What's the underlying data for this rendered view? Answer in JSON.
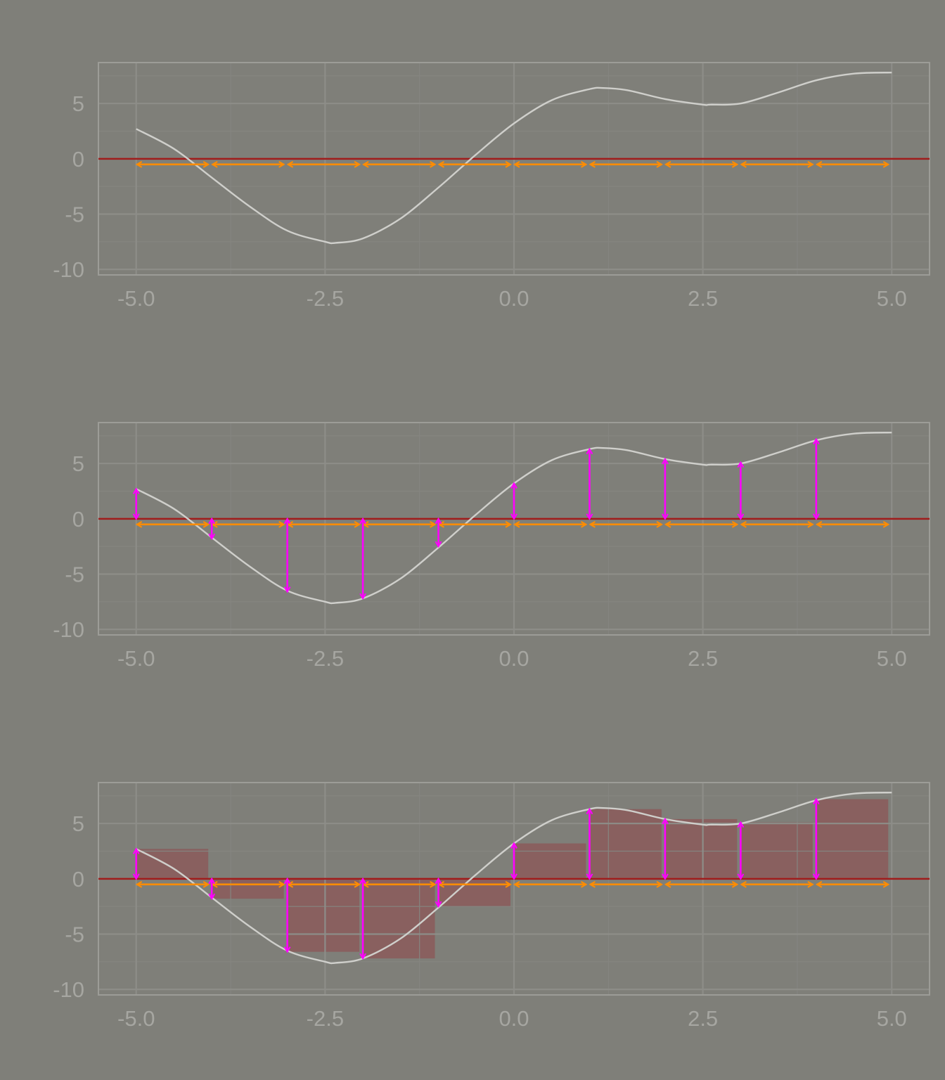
{
  "colors": {
    "background": "#7f7f79",
    "panel_border": "#9c9c97",
    "grid_major": "#8d8d88",
    "grid_minor": "#858580",
    "tick_label": "#a6a6a1",
    "curve": "#cfcfcb",
    "zero_line": "#a01c1c",
    "interval_arrows": "#ff8c00",
    "height_arrows": "#ff00ff",
    "riemann_bars": "#8b5a5a"
  },
  "chart_data": [
    {
      "type": "line",
      "x_ticks": [
        "-5.0",
        "-2.5",
        "0.0",
        "2.5",
        "5.0"
      ],
      "y_ticks": [
        "5",
        "0",
        "-5",
        "-10"
      ],
      "xlim": [
        -5.5,
        5.5
      ],
      "ylim": [
        -10.5,
        8.7
      ],
      "grid": true,
      "curve_x": [
        -5,
        -4.5,
        -4,
        -3.5,
        -3,
        -2.5,
        -2.36,
        -2,
        -1.5,
        -1,
        -0.5,
        0,
        0.5,
        1,
        1.18,
        1.5,
        2,
        2.5,
        2.6,
        3,
        3.5,
        4,
        4.5,
        5
      ],
      "curve_y": [
        2.7,
        0.9,
        -1.7,
        -4.3,
        -6.5,
        -7.5,
        -7.6,
        -7.2,
        -5.4,
        -2.6,
        0.4,
        3.2,
        5.3,
        6.3,
        6.4,
        6.2,
        5.4,
        4.9,
        4.9,
        5.0,
        6.0,
        7.1,
        7.7,
        7.8
      ],
      "interval_edges": [
        -5,
        -4,
        -3,
        -2,
        -1,
        0,
        1,
        2,
        3,
        4,
        5
      ],
      "sample_heights": [],
      "bars": []
    },
    {
      "type": "line",
      "x_ticks": [
        "-5.0",
        "-2.5",
        "0.0",
        "2.5",
        "5.0"
      ],
      "y_ticks": [
        "5",
        "0",
        "-5",
        "-10"
      ],
      "xlim": [
        -5.5,
        5.5
      ],
      "ylim": [
        -10.5,
        8.7
      ],
      "grid": true,
      "curve_x": [
        -5,
        -4.5,
        -4,
        -3.5,
        -3,
        -2.5,
        -2.36,
        -2,
        -1.5,
        -1,
        -0.5,
        0,
        0.5,
        1,
        1.18,
        1.5,
        2,
        2.5,
        2.6,
        3,
        3.5,
        4,
        4.5,
        5
      ],
      "curve_y": [
        2.7,
        0.9,
        -1.7,
        -4.3,
        -6.5,
        -7.5,
        -7.6,
        -7.2,
        -5.4,
        -2.6,
        0.4,
        3.2,
        5.3,
        6.3,
        6.4,
        6.2,
        5.4,
        4.9,
        4.9,
        5.0,
        6.0,
        7.1,
        7.7,
        7.8
      ],
      "interval_edges": [
        -5,
        -4,
        -3,
        -2,
        -1,
        0,
        1,
        2,
        3,
        4,
        5
      ],
      "sample_heights": [
        {
          "x": -5,
          "y": 2.7
        },
        {
          "x": -4,
          "y": -1.8
        },
        {
          "x": -3,
          "y": -6.6
        },
        {
          "x": -2,
          "y": -7.2
        },
        {
          "x": -1,
          "y": -2.5
        },
        {
          "x": 0,
          "y": 3.2
        },
        {
          "x": 1,
          "y": 6.3
        },
        {
          "x": 2,
          "y": 5.4
        },
        {
          "x": 3,
          "y": 5.1
        },
        {
          "x": 4,
          "y": 7.2
        }
      ],
      "bars": []
    },
    {
      "type": "bar",
      "x_ticks": [
        "-5.0",
        "-2.5",
        "0.0",
        "2.5",
        "5.0"
      ],
      "y_ticks": [
        "5",
        "0",
        "-5",
        "-10"
      ],
      "xlim": [
        -5.5,
        5.5
      ],
      "ylim": [
        -10.5,
        8.7
      ],
      "grid": true,
      "curve_x": [
        -5,
        -4.5,
        -4,
        -3.5,
        -3,
        -2.5,
        -2.36,
        -2,
        -1.5,
        -1,
        -0.5,
        0,
        0.5,
        1,
        1.18,
        1.5,
        2,
        2.5,
        2.6,
        3,
        3.5,
        4,
        4.5,
        5
      ],
      "curve_y": [
        2.7,
        0.9,
        -1.7,
        -4.3,
        -6.5,
        -7.5,
        -7.6,
        -7.2,
        -5.4,
        -2.6,
        0.4,
        3.2,
        5.3,
        6.3,
        6.4,
        6.2,
        5.4,
        4.9,
        4.9,
        5.0,
        6.0,
        7.1,
        7.7,
        7.8
      ],
      "interval_edges": [
        -5,
        -4,
        -3,
        -2,
        -1,
        0,
        1,
        2,
        3,
        4,
        5
      ],
      "sample_heights": [
        {
          "x": -5,
          "y": 2.7
        },
        {
          "x": -4,
          "y": -1.8
        },
        {
          "x": -3,
          "y": -6.6
        },
        {
          "x": -2,
          "y": -7.2
        },
        {
          "x": -1,
          "y": -2.5
        },
        {
          "x": 0,
          "y": 3.2
        },
        {
          "x": 1,
          "y": 6.3
        },
        {
          "x": 2,
          "y": 5.4
        },
        {
          "x": 3,
          "y": 5.1
        },
        {
          "x": 4,
          "y": 7.2
        }
      ],
      "bars": [
        {
          "x0": -5,
          "x1": -4,
          "y": 2.7
        },
        {
          "x0": -4,
          "x1": -3,
          "y": -1.8
        },
        {
          "x0": -3,
          "x1": -2,
          "y": -6.6
        },
        {
          "x0": -2,
          "x1": -1,
          "y": -7.2
        },
        {
          "x0": -1,
          "x1": 0,
          "y": -2.5
        },
        {
          "x0": 0,
          "x1": 1,
          "y": 3.2
        },
        {
          "x0": 1,
          "x1": 2,
          "y": 6.3
        },
        {
          "x0": 2,
          "x1": 3,
          "y": 5.4
        },
        {
          "x0": 3,
          "x1": 4,
          "y": 5.1
        },
        {
          "x0": 4,
          "x1": 5,
          "y": 7.2
        }
      ]
    }
  ]
}
